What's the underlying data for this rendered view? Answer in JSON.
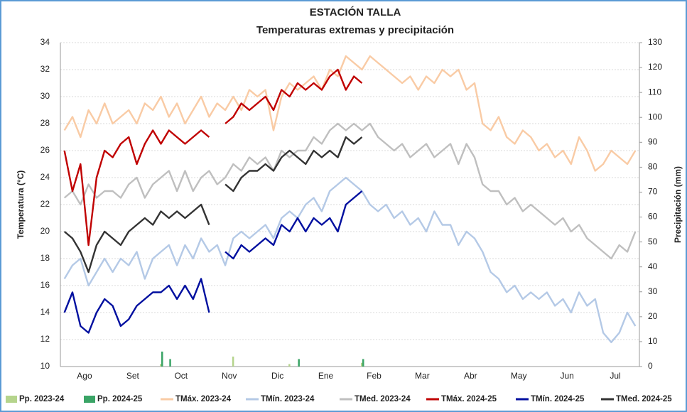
{
  "chart_data": {
    "type": "combo",
    "title": "ESTACIÓN TALLA",
    "subtitle": "Temperaturas extremas y precipitación",
    "ylabel": "Temperatura (°C)",
    "y2label": "Precipitación (mm)",
    "ylim": [
      10,
      34
    ],
    "yticks": [
      10,
      12,
      14,
      16,
      18,
      20,
      22,
      24,
      26,
      28,
      30,
      32,
      34
    ],
    "y2lim": [
      0,
      130
    ],
    "y2ticks": [
      0,
      10,
      20,
      30,
      40,
      50,
      60,
      70,
      80,
      90,
      100,
      110,
      120,
      130
    ],
    "grid": true,
    "legend": "bottom",
    "categories": [
      null,
      null,
      null,
      "Ago",
      null,
      null,
      null,
      null,
      null,
      "Set",
      null,
      null,
      null,
      null,
      null,
      "Oct",
      null,
      null,
      null,
      null,
      null,
      "Nov",
      null,
      null,
      null,
      null,
      null,
      "Dic",
      null,
      null,
      null,
      null,
      null,
      "Ene",
      null,
      null,
      null,
      null,
      null,
      "Feb",
      null,
      null,
      null,
      null,
      null,
      "Mar",
      null,
      null,
      null,
      null,
      null,
      "Abr",
      null,
      null,
      null,
      null,
      null,
      "May",
      null,
      null,
      null,
      null,
      null,
      "Jun",
      null,
      null,
      null,
      null,
      null,
      "Jul",
      null,
      null
    ],
    "series": [
      {
        "name": "Pp. 2023-24",
        "type": "bar",
        "axis": "y2",
        "color": "#b5d48c",
        "values": [
          0,
          0,
          0,
          0,
          0,
          0,
          0,
          0,
          0,
          0,
          0,
          0,
          1,
          0,
          0,
          0,
          0,
          0,
          0,
          0,
          0,
          4,
          0,
          0,
          0,
          0,
          0,
          0,
          1,
          0,
          0,
          0,
          0,
          0,
          0,
          0,
          0,
          1.5,
          0,
          0,
          0,
          0,
          0,
          0,
          0,
          0,
          0,
          0,
          0,
          0,
          0,
          0,
          0,
          0,
          0,
          0,
          0,
          0,
          0,
          0,
          0,
          0,
          0,
          0,
          0,
          0,
          0,
          0,
          0,
          0,
          0,
          0
        ]
      },
      {
        "name": "Pp. 2024-25",
        "type": "bar",
        "axis": "y2",
        "color": "#3aa466",
        "values": [
          0,
          0,
          0,
          0,
          0,
          0,
          0,
          0,
          0,
          0,
          0,
          0,
          6,
          3,
          0,
          0,
          0,
          0,
          0,
          0,
          0,
          0,
          0,
          0,
          0,
          0,
          0,
          0,
          0,
          3,
          0,
          0,
          0,
          0,
          0,
          0,
          0,
          3,
          0,
          0,
          0,
          0,
          0,
          0,
          0,
          0,
          0,
          0,
          0,
          0,
          0,
          0,
          0,
          0,
          0,
          0,
          0,
          0,
          0,
          0,
          0,
          0,
          0,
          0,
          0,
          0,
          0,
          0,
          0,
          0,
          0,
          0
        ]
      },
      {
        "name": "TMáx. 2023-24",
        "type": "line",
        "color": "#f9cba5",
        "values": [
          27.5,
          28.5,
          27,
          29,
          28,
          29.5,
          28,
          28.5,
          29,
          28,
          29.5,
          29,
          30,
          28.5,
          29.5,
          28,
          29,
          30,
          28.5,
          29.5,
          29,
          30,
          29,
          30.5,
          30,
          30.5,
          27.5,
          30,
          31,
          30.5,
          31,
          31.5,
          30.5,
          32,
          31.5,
          33,
          32.5,
          32,
          33,
          32.5,
          32,
          31.5,
          31,
          31.5,
          30.5,
          31.5,
          31,
          32,
          31.5,
          32,
          30.5,
          31,
          28,
          27.5,
          28.5,
          27,
          26.5,
          27.5,
          27,
          26,
          26.5,
          25.5,
          26,
          25,
          27,
          26,
          24.5,
          25,
          26,
          25.5,
          25,
          26
        ]
      },
      {
        "name": "TMín. 2023-24",
        "type": "line",
        "color": "#b4c9e6",
        "values": [
          16.5,
          17.5,
          18,
          16,
          17,
          18,
          17,
          18,
          17.5,
          18.5,
          16.5,
          18,
          18.5,
          19,
          17.5,
          19,
          18,
          19.5,
          18.5,
          19,
          17.5,
          19.5,
          20,
          19.5,
          20,
          20.5,
          19.5,
          21,
          21.5,
          21,
          22,
          22.5,
          21.5,
          23,
          23.5,
          24,
          23.5,
          23,
          22,
          21.5,
          22,
          21,
          21.5,
          20.5,
          21,
          20,
          21.5,
          20.5,
          20.5,
          19,
          20,
          19.5,
          18.5,
          17,
          16.5,
          15.5,
          16,
          15,
          15.5,
          15,
          15.5,
          14.5,
          15,
          14,
          15.5,
          14.5,
          15,
          12.5,
          11.8,
          12.5,
          14,
          13
        ]
      },
      {
        "name": "TMed. 2023-24",
        "type": "line",
        "color": "#bfbfbf",
        "values": [
          22.5,
          23,
          22,
          23.5,
          22.5,
          23,
          23,
          22.5,
          23.5,
          24,
          22.5,
          23.5,
          24,
          24.5,
          23,
          24.5,
          23,
          24,
          24.5,
          23.5,
          24,
          25,
          24.5,
          25.5,
          25,
          25.5,
          24.5,
          26,
          25.5,
          26,
          26,
          27,
          26.5,
          27.5,
          28,
          27.5,
          28,
          27.5,
          28,
          27,
          26.5,
          26,
          26.5,
          25.5,
          26,
          26.5,
          25.5,
          26,
          26.5,
          25,
          26.5,
          25.5,
          23.5,
          23,
          23,
          22,
          22.5,
          21.5,
          22,
          21.5,
          21,
          20.5,
          21,
          20,
          20.5,
          19.5,
          19,
          18.5,
          18,
          19,
          18.5,
          20
        ]
      },
      {
        "name": "TMáx. 2024-25",
        "type": "line",
        "color": "#c00000",
        "values": [
          26,
          23,
          25,
          19,
          24,
          26,
          25.5,
          26.5,
          27,
          25,
          26.5,
          27.5,
          26.5,
          27.5,
          27,
          26.5,
          27,
          27.5,
          27,
          null,
          28,
          28.5,
          29.5,
          29,
          29.5,
          30,
          29,
          30.5,
          30,
          31,
          30.5,
          31,
          30.5,
          31.5,
          32,
          30.5,
          31.5,
          31,
          null,
          null,
          null,
          null,
          null,
          null,
          null,
          null,
          null,
          null,
          null,
          null,
          null,
          null,
          null,
          null,
          null,
          null,
          null,
          null,
          null,
          null,
          null,
          null,
          null,
          null,
          null,
          null,
          null,
          null,
          null,
          null,
          null,
          null
        ]
      },
      {
        "name": "TMín. 2024-25",
        "type": "line",
        "color": "#000f9f",
        "values": [
          14,
          15.5,
          13,
          12.5,
          14,
          15,
          14.5,
          13,
          13.5,
          14.5,
          15,
          15.5,
          15.5,
          16,
          15,
          16,
          15,
          16.5,
          14,
          null,
          18.5,
          18,
          19,
          18.5,
          19,
          19.5,
          19,
          20.5,
          20,
          21,
          20,
          21,
          20.5,
          21,
          20,
          22,
          22.5,
          23,
          null,
          null,
          null,
          null,
          null,
          null,
          null,
          null,
          null,
          null,
          null,
          null,
          null,
          null,
          null,
          null,
          null,
          null,
          null,
          null,
          null,
          null,
          null,
          null,
          null,
          null,
          null,
          null,
          null,
          null,
          null,
          null,
          null,
          null
        ]
      },
      {
        "name": "TMed. 2024-25",
        "type": "line",
        "color": "#333333",
        "values": [
          20,
          19.5,
          18.5,
          17,
          19,
          20,
          19.5,
          19,
          20,
          20.5,
          21,
          20.5,
          21.5,
          21,
          21.5,
          21,
          21.5,
          22,
          20.5,
          null,
          23.5,
          23,
          24,
          24.5,
          24.5,
          25,
          24.5,
          25.5,
          26,
          25.5,
          25,
          26,
          25.5,
          26,
          25.5,
          27,
          26.5,
          27,
          null,
          null,
          null,
          null,
          null,
          null,
          null,
          null,
          null,
          null,
          null,
          null,
          null,
          null,
          null,
          null,
          null,
          null,
          null,
          null,
          null,
          null,
          null,
          null,
          null,
          null,
          null,
          null,
          null,
          null,
          null,
          null,
          null,
          null
        ]
      }
    ]
  }
}
